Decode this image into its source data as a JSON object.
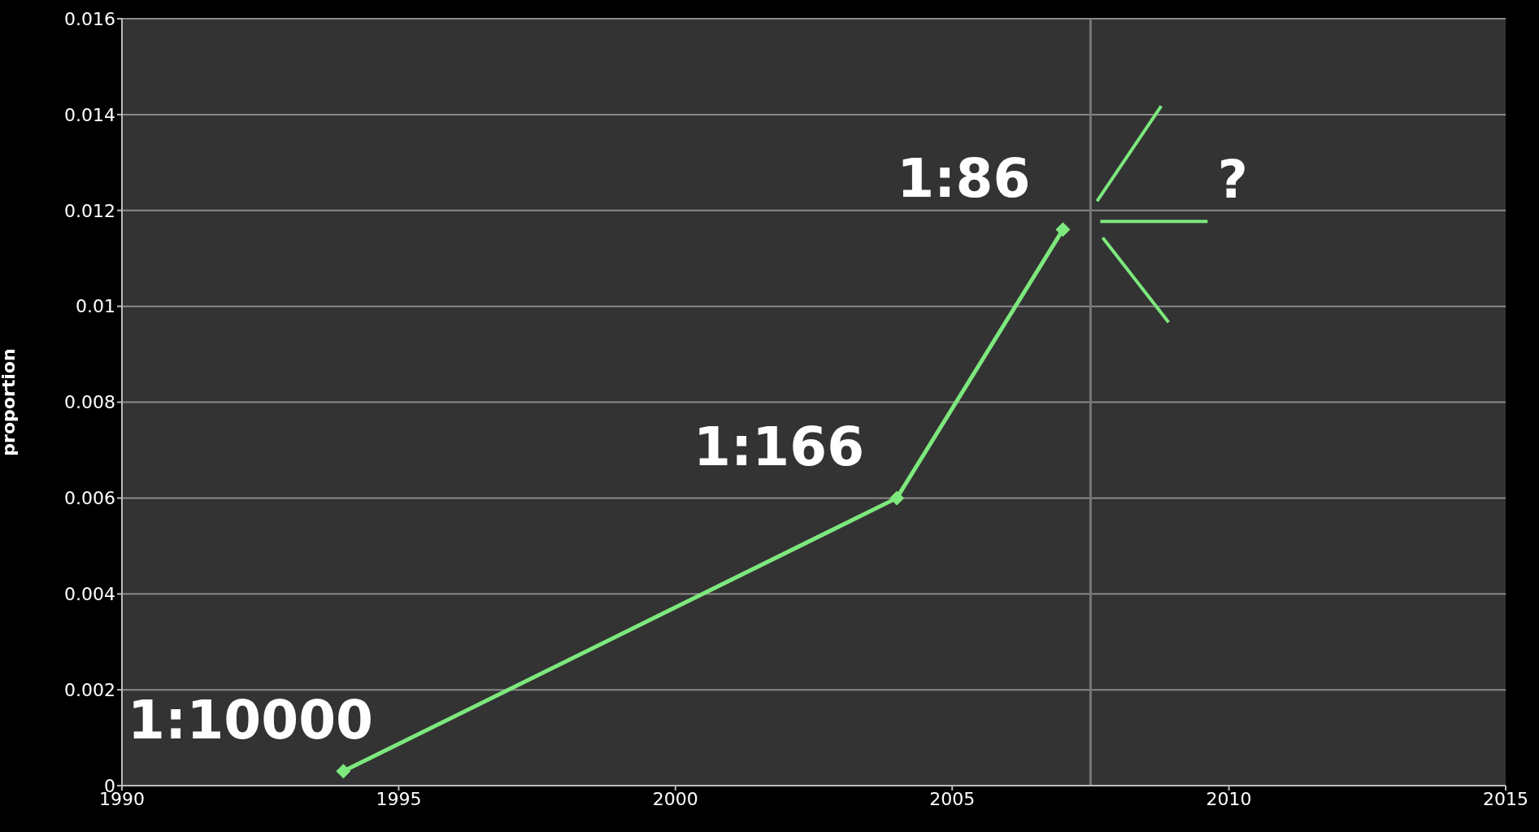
{
  "chart_data": {
    "type": "line",
    "ylabel": "proportion",
    "x": [
      1994,
      2004,
      2007
    ],
    "series": [
      {
        "color": "#7de87d",
        "values": [
          0.0003,
          0.006,
          0.0116
        ]
      }
    ],
    "xlim": [
      1990,
      2015
    ],
    "xticks": [
      1990,
      1995,
      2000,
      2005,
      2010,
      2015
    ],
    "ylim": [
      0,
      0.016
    ],
    "yticks": [
      0,
      0.002,
      0.004,
      0.006,
      0.008,
      0.01,
      0.012,
      0.014,
      0.016
    ],
    "grid": "y",
    "marker": "diamond",
    "line_style": "solid",
    "ref_lines": [
      {
        "axis": "x",
        "value": 2007.5,
        "color": "#777777"
      }
    ],
    "annotations": [
      {
        "text": "1:10000",
        "x": 1994,
        "y": 0.0003
      },
      {
        "text": "1:166",
        "x": 2004,
        "y": 0.006
      },
      {
        "text": "1:86",
        "x": 2007,
        "y": 0.0116
      },
      "?"
    ]
  }
}
